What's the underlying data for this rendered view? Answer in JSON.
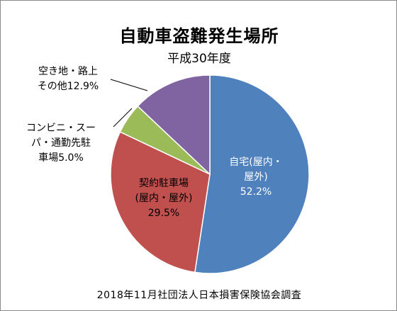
{
  "chart_data": {
    "type": "pie",
    "title": "自動車盗難発生場所",
    "subtitle": "平成30年度",
    "source": "2018年11月社団法人日本損害保険協会調査",
    "slices": [
      {
        "label_lines": [
          "自宅(屋内・",
          "屋外)",
          "52.2%"
        ],
        "value": 52.2,
        "color": "#4f81bd",
        "label_color": "#ffffff"
      },
      {
        "label_lines": [
          "契約駐車場",
          "(屋内・屋外)",
          "29.5%"
        ],
        "value": 29.5,
        "color": "#c0504d",
        "label_color": "#000000"
      },
      {
        "label_lines": [
          "コンビニ・スー",
          "パ・通勤先駐",
          "車場5.0%"
        ],
        "value": 5.0,
        "color": "#9bbb59",
        "label_color": "#000000"
      },
      {
        "label_lines": [
          "空き地・路上",
          "その他12.9%"
        ],
        "value": 12.9,
        "color": "#8064a2",
        "label_color": "#000000"
      }
    ]
  }
}
